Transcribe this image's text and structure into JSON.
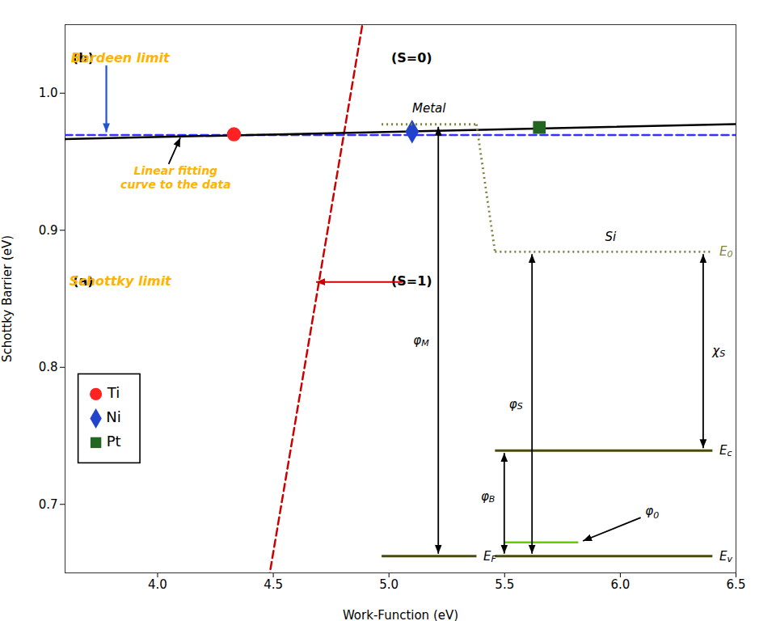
{
  "chart_data": {
    "type": "scatter",
    "xlabel": "Work-Function (eV)",
    "ylabel": "Schottky Barrier (eV)",
    "xlim": [
      3.6,
      6.5
    ],
    "ylim": [
      0.65,
      1.05
    ],
    "xticks": [
      {
        "value": 4.0,
        "label": "4.0"
      },
      4.5,
      {
        "value": 5.0,
        "label": "5.0"
      },
      5.5,
      {
        "value": 6.0,
        "label": "6.0"
      },
      6.5
    ],
    "yticks": [
      0.7,
      0.8,
      0.9,
      {
        "value": 1.0,
        "label": "1.0"
      }
    ],
    "grid": false,
    "legend": "lower left",
    "series": [
      {
        "name": "Ti",
        "color": "#FF2222",
        "marker": "circle",
        "x": [
          4.33
        ],
        "values": [
          0.97
        ]
      },
      {
        "name": "Ni",
        "color": "#2244CC",
        "marker": "diamond",
        "x": [
          5.1
        ],
        "values": [
          0.972
        ]
      },
      {
        "name": "Pt",
        "color": "#226622",
        "marker": "square",
        "x": [
          5.65
        ],
        "values": [
          0.975
        ]
      }
    ],
    "lines": [
      {
        "type": "line",
        "color": "#3333FF",
        "line_style": "dashed",
        "x": [
          3.6,
          6.5
        ],
        "values": [
          0.9695,
          0.9695
        ]
      },
      {
        "type": "line",
        "color": "#CC0000",
        "line_style": "dashed",
        "x": [
          3.6,
          6.5
        ],
        "values": [
          -0.235,
          2.665
        ]
      },
      {
        "type": "line",
        "color": "#000000",
        "line_style": "solid",
        "x": [
          3.6,
          6.5
        ],
        "values": [
          0.9665,
          0.9775
        ]
      }
    ],
    "annotations": [
      {
        "parts": [
          {
            "text": "(b)",
            "color": "#000000"
          },
          {
            "text": "Bardeen limit",
            "color": "#FFB300"
          },
          {
            "text": "(S=0)",
            "color": "#000000"
          }
        ],
        "arrow": {
          "color": "#2255CC"
        }
      },
      {
        "parts": [
          {
            "text": "Linear fitting\ncurve to the data",
            "color": "#FFB300"
          }
        ],
        "arrow": {
          "color": "#000000"
        }
      },
      {
        "parts": [
          {
            "text": "(a)",
            "color": "#000000"
          },
          {
            "text": "Schottky limit",
            "color": "#FFB300"
          },
          {
            "text": "(S=1)",
            "color": "#000000"
          }
        ],
        "arrow": {
          "color": "#CC0000"
        }
      }
    ],
    "band_diagram": {
      "band": {
        "color": "#4A4A10"
      },
      "vacuum": {
        "color": "#808040",
        "line_style": "dotted"
      },
      "interface": {
        "color": "#66CC00"
      },
      "labels": [
        {
          "text": "Metal"
        },
        {
          "text": "Si"
        },
        {
          "text": "E",
          "subscript": "0",
          "color": "#808040"
        },
        {
          "text": "E",
          "subscript": "c"
        },
        {
          "text": "E",
          "subscript": "v"
        },
        {
          "text": "E",
          "subscript": "F"
        },
        {
          "text": "φ",
          "subscript": "M"
        },
        {
          "text": "φ",
          "subscript": "S"
        },
        {
          "text": "χ",
          "subscript": "S"
        },
        {
          "text": "φ",
          "subscript": "B"
        },
        {
          "text": "φ",
          "subscript": "0"
        }
      ]
    }
  }
}
